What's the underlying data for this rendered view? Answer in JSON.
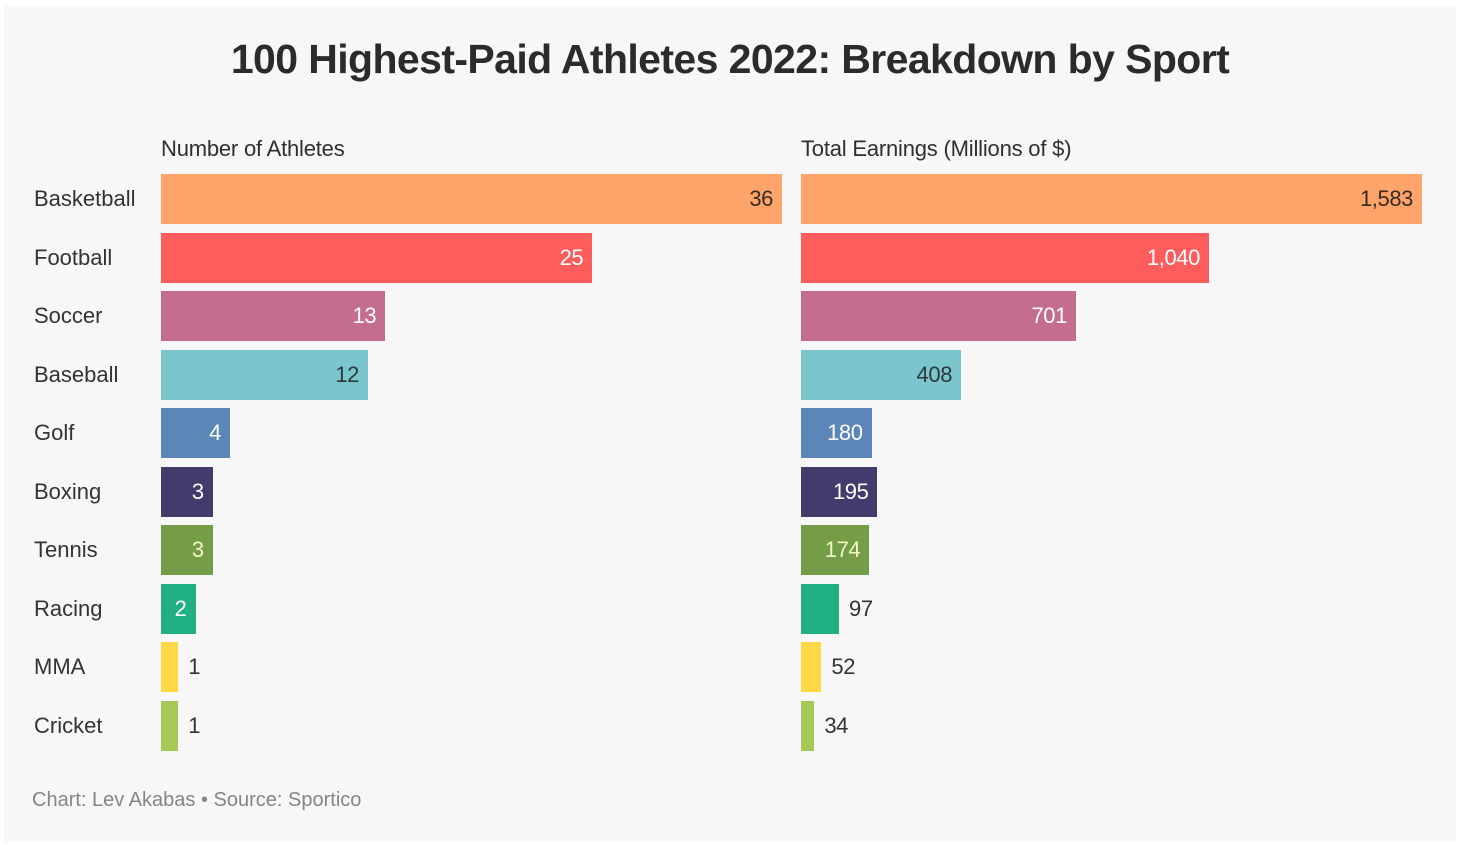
{
  "chart_data": {
    "type": "bar",
    "orientation": "horizontal",
    "title": "100 Highest-Paid Athletes 2022: Breakdown by Sport",
    "categories": [
      "Basketball",
      "Football",
      "Soccer",
      "Baseball",
      "Golf",
      "Boxing",
      "Tennis",
      "Racing",
      "MMA",
      "Cricket"
    ],
    "colors": [
      "#ffa46b",
      "#ff5c5c",
      "#c56d8f",
      "#7ac6cc",
      "#5b86b8",
      "#453a6c",
      "#759c46",
      "#21b083",
      "#fcd844",
      "#a6c857"
    ],
    "label_colors": [
      "#3a2a20",
      "#ffffff",
      "#ffffff",
      "#2a3a3c",
      "#ffffff",
      "#ffffff",
      "#f2f7c8",
      "#ffffff",
      "#333333",
      "#333333"
    ],
    "panels": [
      {
        "title": "Number of Athletes",
        "values": [
          36,
          25,
          13,
          12,
          4,
          3,
          3,
          2,
          1,
          1
        ],
        "labels": [
          "36",
          "25",
          "13",
          "12",
          "4",
          "3",
          "3",
          "2",
          "1",
          "1"
        ],
        "xlim": [
          0,
          36
        ],
        "grid": false
      },
      {
        "title": "Total Earnings (Millions of $)",
        "values": [
          1583,
          1040,
          701,
          408,
          180,
          195,
          174,
          97,
          52,
          34
        ],
        "labels": [
          "1,583",
          "1,040",
          "701",
          "408",
          "180",
          "195",
          "174",
          "97",
          "52",
          "34"
        ],
        "xlim": [
          0,
          1583
        ],
        "grid": false
      }
    ],
    "legend": "none",
    "footer": "Chart: Lev Akabas • Source: Sportico"
  }
}
